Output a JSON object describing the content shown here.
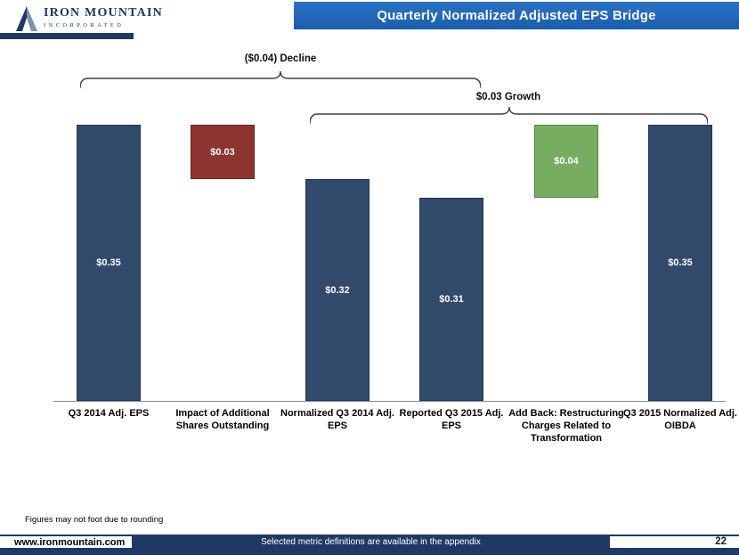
{
  "header": {
    "title": "Quarterly Normalized Adjusted EPS Bridge",
    "logo": {
      "line1": "IRON MOUNTAIN",
      "line2": "INCORPORATED"
    }
  },
  "colors": {
    "header_blue": "#1E63B0",
    "footer_navy": "#1F3864",
    "navy_bar": "#31496B",
    "navy_border": "#243750",
    "red_bar": "#8D3431",
    "red_border": "#6E2523",
    "green_bar": "#77AD61",
    "green_border": "#558441",
    "bracket_stroke": "#3f3f3f"
  },
  "chart_data": {
    "type": "bar",
    "subtype": "waterfall",
    "title": "Quarterly Normalized Adjusted EPS Bridge",
    "categories": [
      "Q3 2014 Adj. EPS",
      "Impact of Additional Shares Outstanding",
      "Normalized Q3 2014 Adj. EPS",
      "Reported Q3 2015 Adj. EPS",
      "Add Back: Restructuring Charges Related to Transformation",
      "Q3 2015 Normalized Adj. OIBDA"
    ],
    "bars": [
      {
        "category": "Q3 2014 Adj. EPS",
        "label": "$0.35",
        "start": null,
        "end": 0.35,
        "role": "total"
      },
      {
        "category": "Impact of Additional Shares Outstanding",
        "label": "$0.03",
        "start": 0.32,
        "end": 0.35,
        "role": "decrease"
      },
      {
        "category": "Normalized Q3 2014 Adj. EPS",
        "label": "$0.32",
        "start": null,
        "end": 0.32,
        "role": "total"
      },
      {
        "category": "Reported Q3 2015 Adj. EPS",
        "label": "$0.31",
        "start": null,
        "end": 0.31,
        "role": "total"
      },
      {
        "category": "Add Back: Restructuring Charges Related to Transformation",
        "label": "$0.04",
        "start": 0.31,
        "end": 0.35,
        "role": "increase"
      },
      {
        "category": "Q3 2015 Normalized Adj. OIBDA",
        "label": "$0.35",
        "start": null,
        "end": 0.35,
        "role": "total"
      }
    ],
    "annotations": [
      {
        "text": "($0.04) Decline",
        "span": [
          0,
          2
        ]
      },
      {
        "text": "$0.03 Growth",
        "span": [
          2,
          5
        ]
      }
    ],
    "ylim": [
      0.198,
      0.37
    ],
    "axis_visible": false,
    "grid": false,
    "legend": "none"
  },
  "footnote": "Figures may not foot due to rounding",
  "footer": {
    "url": "www.ironmountain.com",
    "note": "Selected metric definitions are available in the appendix",
    "page": "22"
  }
}
